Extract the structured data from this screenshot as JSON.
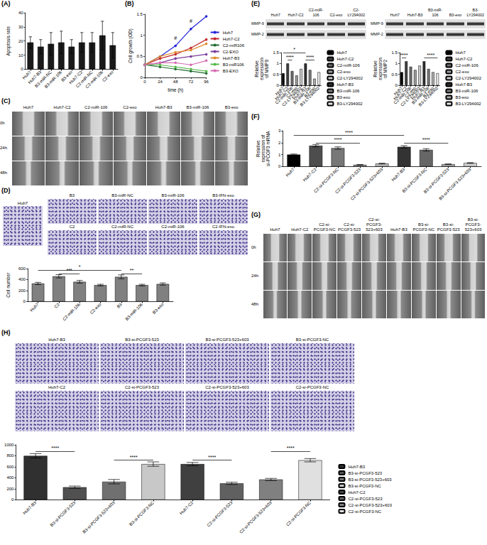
{
  "panel_labels": [
    "(A)",
    "(B)",
    "(C)",
    "(D)",
    "(E)",
    "(F)",
    "(G)",
    "(H)"
  ],
  "chart_data": [
    {
      "type": "bar",
      "y_label": "Apoptosis rate",
      "categories": [
        "Huh7",
        "Huh7-B3",
        "B3-miR-NC",
        "B3-miR-106",
        "B3-exo",
        "Huh7-C2",
        "C2-miR-NC",
        "C2-miR-106",
        "C2-exo"
      ],
      "values": [
        19,
        16,
        18,
        19,
        16,
        19,
        19,
        24,
        17
      ],
      "errors": [
        4,
        5,
        8,
        8,
        5,
        7,
        7,
        10,
        9
      ],
      "color": "#1a1a1a",
      "ylim": [
        0,
        40
      ],
      "yticks": [
        0,
        10,
        20,
        30,
        40
      ]
    },
    {
      "type": "line",
      "x_label": "time (h)",
      "y_label": "Cell growth (OD)",
      "x": [
        0,
        24,
        48,
        72,
        96
      ],
      "xlim": [
        0,
        96
      ],
      "xticks": [
        0,
        24,
        48,
        72,
        96
      ],
      "ylim": [
        0,
        1.5
      ],
      "yticks": [
        0,
        0.5,
        1,
        1.5
      ],
      "marker": "circle",
      "legend": "right",
      "series": [
        {
          "name": "Huh7",
          "color": "#2323d8",
          "values": [
            0.3,
            0.5,
            0.75,
            1.15,
            1.45
          ]
        },
        {
          "name": "Huh7-C2",
          "color": "#c0282c",
          "values": [
            0.3,
            0.45,
            0.55,
            0.7,
            0.9
          ]
        },
        {
          "name": "C2-miR106",
          "color": "#1f6b30",
          "values": [
            0.3,
            0.25,
            0.2,
            0.15,
            0.1
          ]
        },
        {
          "name": "C2-EXO",
          "color": "#7b3a9c",
          "values": [
            0.3,
            0.35,
            0.45,
            0.5,
            0.55
          ]
        },
        {
          "name": "Huh7-B3",
          "color": "#e08a2a",
          "values": [
            0.3,
            0.5,
            0.6,
            0.65,
            0.8
          ]
        },
        {
          "name": "B3-miR106",
          "color": "#57b84a",
          "values": [
            0.3,
            0.3,
            0.25,
            0.2,
            0.15
          ]
        },
        {
          "name": "B3-EXO",
          "color": "#d66bb0",
          "values": [
            0.3,
            0.35,
            0.35,
            0.3,
            0.4
          ]
        }
      ],
      "annotations": [
        {
          "text": "#",
          "x": 48,
          "y": 0.85
        },
        {
          "text": "#",
          "x": 72,
          "y": 1.25
        }
      ]
    },
    {
      "type": "bar",
      "y_label": "Cell number",
      "categories": [
        "Huh7",
        "C2",
        "C2-miR-106",
        "C2-exo",
        "B3",
        "B3-miR-106",
        "B3-exo"
      ],
      "values": [
        330,
        460,
        360,
        300,
        450,
        300,
        320
      ],
      "errors": [
        20,
        30,
        25,
        15,
        35,
        15,
        20
      ],
      "color": "#808080",
      "ylim": [
        0,
        600
      ],
      "yticks": [
        0,
        200,
        400,
        600
      ],
      "annotations": [
        {
          "text": "*",
          "from": 0,
          "to": 4,
          "y": 570
        },
        {
          "text": "***",
          "from": 1,
          "to": 2,
          "y": 510
        },
        {
          "text": "**",
          "from": 4,
          "to": 5,
          "y": 510
        }
      ]
    },
    {
      "type": "bar",
      "y_label": "Relative expression of MMP9",
      "categories": [
        "Huh7",
        "Huh7-C2",
        "C2-miR-106",
        "C2-exo",
        "C2-LY294002",
        "Huh7-B3",
        "B3-miR-106",
        "B3-exo",
        "B3-LY294002"
      ],
      "values": [
        0.55,
        1.0,
        0.65,
        0.45,
        0.75,
        1.0,
        0.7,
        0.3,
        0.6
      ],
      "colors": [
        "#000000",
        "#404040",
        "#6e6e6e",
        "#9a9a9a",
        "#c8c8c8",
        "#303030",
        "#7a7a7a",
        "#aaaaaa",
        "#e8e8e8"
      ],
      "legend": "right",
      "ylim": [
        0,
        1.5
      ],
      "yticks": [
        0,
        0.5,
        1,
        1.5
      ],
      "annotations": [
        {
          "text": "****",
          "from": 1,
          "to": 2,
          "y": 1.15
        },
        {
          "text": "****",
          "from": 5,
          "to": 7,
          "y": 1.15
        },
        {
          "text": "*",
          "from": 0,
          "to": 5,
          "y": 1.5
        }
      ]
    },
    {
      "type": "bar",
      "y_label": "Relative expression of MMP2",
      "categories": [
        "Huh7",
        "Huh7-C2",
        "C2-miR-106",
        "C2-exo",
        "C2-LY294002",
        "Huh7-B3",
        "B3-miR-106",
        "B3-exo",
        "B3-LY294002"
      ],
      "values": [
        0.6,
        1.1,
        0.85,
        0.7,
        0.9,
        1.1,
        0.75,
        0.6,
        0.55
      ],
      "colors": [
        "#000000",
        "#404040",
        "#6e6e6e",
        "#9a9a9a",
        "#c8c8c8",
        "#303030",
        "#7a7a7a",
        "#aaaaaa",
        "#e8e8e8"
      ],
      "legend": "right",
      "ylim": [
        0,
        1.5
      ],
      "yticks": [
        0,
        0.5,
        1,
        1.5
      ],
      "annotations": [
        {
          "text": "****",
          "from": 0,
          "to": 1,
          "y": 1.25
        },
        {
          "text": "****",
          "from": 5,
          "to": 8,
          "y": 1.25
        }
      ]
    },
    {
      "type": "bar",
      "y_label": "Relative expression of si-PCGF3 mRNA",
      "categories": [
        "Huh7",
        "Huh7-C2",
        "C2-si-PCGF3-NC",
        "C2-si-PCGF3-523",
        "C2-si-PCGF3-523+603",
        "Huh7-B3",
        "B3-si-PCGF3-NC",
        "B3-si-PCGF3-523",
        "B3-si-PCGF3-523+603"
      ],
      "values": [
        1.0,
        1.75,
        1.55,
        0.15,
        0.25,
        1.65,
        1.4,
        0.2,
        0.3
      ],
      "errors": [
        0.05,
        0.1,
        0.1,
        0.02,
        0.03,
        0.1,
        0.1,
        0.02,
        0.03
      ],
      "colors": [
        "#000000",
        "#4d4d4d",
        "#777777",
        "#999999",
        "#bbbbbb",
        "#333333",
        "#666666",
        "#aaaaaa",
        "#d0d0d0"
      ],
      "ylim": [
        0,
        3
      ],
      "yticks": [
        0,
        1,
        2,
        3
      ],
      "annotations": [
        {
          "text": "****",
          "from": 0,
          "to": 5,
          "y": 2.6
        },
        {
          "text": "****",
          "from": 1,
          "to": 3,
          "y": 2.0
        },
        {
          "text": "****",
          "from": 5,
          "to": 7,
          "y": 2.0
        }
      ]
    },
    {
      "type": "bar",
      "categories": [
        "Huh7-B3",
        "B3-si-PCGF3-523",
        "B3-si-PCGF3-523+603",
        "B3-si-PCGF3-NC",
        "Huh7-C2",
        "C2-si-PCGF3-523",
        "C2-si-PCGF3-523+603",
        "C2-si-PCGF3-NC"
      ],
      "values": [
        800,
        230,
        330,
        650,
        650,
        300,
        370,
        720
      ],
      "errors": [
        40,
        20,
        40,
        40,
        30,
        20,
        20,
        30
      ],
      "colors": [
        "#303030",
        "#505050",
        "#707070",
        "#c8c8c8",
        "#404040",
        "#606060",
        "#808080",
        "#e0e0e0"
      ],
      "legend": "right",
      "ylim": [
        0,
        1000
      ],
      "yticks": [
        0,
        200,
        400,
        600,
        800,
        1000
      ],
      "annotations": [
        {
          "text": "****",
          "from": 0,
          "to": 1,
          "y": 880
        },
        {
          "text": "****",
          "from": 2,
          "to": 3,
          "y": 720
        },
        {
          "text": "****",
          "from": 4,
          "to": 5,
          "y": 720
        },
        {
          "text": "****",
          "from": 6,
          "to": 7,
          "y": 880
        }
      ]
    }
  ],
  "images": {
    "C": {
      "columns": [
        "Huh7",
        "Huh7-C2",
        "C2-miR-106",
        "C2-exo",
        "Huh7-B3",
        "B3-miR-106",
        "B3-exo"
      ],
      "rows": [
        "0h",
        "24h",
        "48h"
      ]
    },
    "D": {
      "control": "Huh7",
      "rows": [
        [
          "B3",
          "B3-miR-NC",
          "B3-miR-106",
          "B3-IFN-exo"
        ],
        [
          "C2",
          "C2-miR-NC",
          "C2-miR-106",
          "C2-IFN-exo"
        ]
      ]
    },
    "E": [
      {
        "columns": [
          "Huh7",
          "Huh7-C2",
          "C2-miR-106",
          "C2-exo",
          "C2-LY294002"
        ],
        "rows": [
          "MMP-9",
          "MMP-2"
        ]
      },
      {
        "columns": [
          "Huh7",
          "Huh7-B3",
          "B3-miR-106",
          "B3-exo",
          "B3-LY294002"
        ],
        "rows": [
          "MMP-9",
          "MMP-2"
        ]
      }
    ],
    "G": {
      "columns": [
        "Huh7",
        "Huh7-C2",
        "C2-si-PCGF3-NC",
        "C2-si-PCGF3-523",
        "C2-si-PCGF3-523+603",
        "Huh7-B3",
        "B3-si-PCGF3-NC",
        "B3-si-PCGF3-523",
        "B3-si-PCGF3-523+603"
      ],
      "rows": [
        "0h",
        "24h",
        "48h"
      ]
    },
    "H": {
      "rows": [
        [
          "Huh7-B3",
          "B3-si-PCGF3-523",
          "B3-si-PCGF3-523+603",
          "B3-si-PCGF3-NC"
        ],
        [
          "Huh7-C2",
          "C2-si-PCGF3-523",
          "C2-si-PCGF3-523+603",
          "C2-si-PCGF3-NC"
        ]
      ]
    }
  }
}
